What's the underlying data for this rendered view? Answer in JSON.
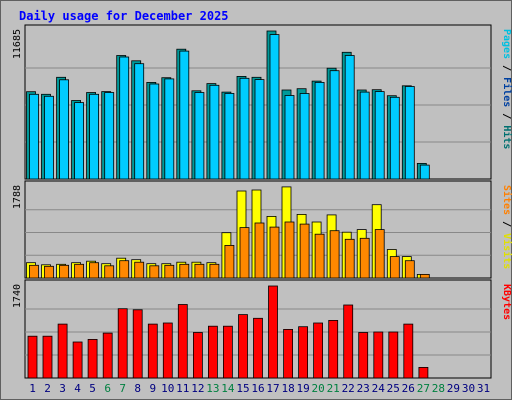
{
  "chart_data": {
    "type": "bar",
    "title": "Daily usage for December 2025",
    "categories": [
      "1",
      "2",
      "3",
      "4",
      "5",
      "6",
      "7",
      "8",
      "9",
      "10",
      "11",
      "12",
      "13",
      "14",
      "15",
      "16",
      "17",
      "18",
      "19",
      "20",
      "21",
      "22",
      "23",
      "24",
      "25",
      "26",
      "27",
      "28",
      "29",
      "30",
      "31"
    ],
    "weekend_days": [
      "6",
      "7",
      "13",
      "14",
      "20",
      "21",
      "27",
      "28"
    ],
    "panels": [
      {
        "id": "pages-files-hits",
        "max_label": "11685",
        "ymax": 11685,
        "axis_labels": [
          {
            "text": "Pages",
            "color": "#00c0e0"
          },
          {
            "text": "Files",
            "color": "#0040a0"
          },
          {
            "text": "Hits",
            "color": "#007070"
          }
        ],
        "series": [
          {
            "name": "Hits",
            "color": "#009999",
            "values": [
              6890,
              6690,
              8030,
              6200,
              6830,
              6900,
              9750,
              9330,
              7630,
              8000,
              10250,
              6960,
              7530,
              6860,
              8100,
              8030,
              11685,
              7030,
              7130,
              7730,
              8750,
              10000,
              7030,
              7050,
              6580,
              7360,
              1230,
              0,
              0,
              0,
              0
            ]
          },
          {
            "name": "Files",
            "color": "#00ccff",
            "values": [
              6690,
              6530,
              7830,
              6030,
              6690,
              6830,
              9630,
              9100,
              7500,
              7900,
              10100,
              6830,
              7400,
              6760,
              7950,
              7850,
              11400,
              6590,
              6750,
              7630,
              8550,
              9750,
              6860,
              6900,
              6450,
              7300,
              1100,
              0,
              0,
              0,
              0
            ]
          }
        ]
      },
      {
        "id": "sites-visits",
        "max_label": "1788",
        "ymax": 1788,
        "axis_labels": [
          {
            "text": "Sites",
            "color": "#ff8000"
          },
          {
            "text": "Visits",
            "color": "#e0e000"
          }
        ],
        "series": [
          {
            "name": "Visits",
            "color": "#ffff00",
            "values": [
              300,
              260,
              270,
              300,
              330,
              280,
              390,
              360,
              280,
              280,
              310,
              310,
              300,
              890,
              1710,
              1730,
              1210,
              1790,
              1250,
              1100,
              1240,
              900,
              950,
              1440,
              560,
              420,
              70,
              0,
              0,
              0,
              0
            ]
          },
          {
            "name": "Sites",
            "color": "#ff8800",
            "values": [
              250,
              230,
              250,
              270,
              300,
              240,
              340,
              310,
              240,
              250,
              270,
              270,
              270,
              640,
              990,
              1080,
              1000,
              1100,
              1060,
              860,
              930,
              760,
              780,
              950,
              420,
              340,
              70,
              0,
              0,
              0,
              0
            ]
          }
        ]
      },
      {
        "id": "kbytes",
        "max_label": "1740",
        "ymax": 1740,
        "axis_labels": [
          {
            "text": "KBytes",
            "color": "#ff0000"
          }
        ],
        "series": [
          {
            "name": "KBytes",
            "color": "#ff0000",
            "values": [
              790,
              790,
              1020,
              680,
              730,
              850,
              1310,
              1290,
              1020,
              1040,
              1390,
              860,
              980,
              980,
              1200,
              1130,
              1740,
              920,
              970,
              1040,
              1090,
              1380,
              860,
              870,
              870,
              1020,
              200,
              0,
              0,
              0,
              0
            ]
          }
        ]
      }
    ]
  },
  "colors": {
    "title": "#0000ff",
    "weekday_label": "#000080",
    "weekend_label": "#008040",
    "panel_bg": "#c0c0c0",
    "frame": "#000000"
  }
}
